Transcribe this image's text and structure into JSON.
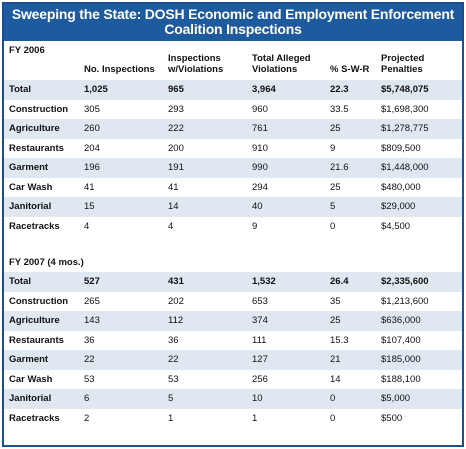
{
  "title_line1": "Sweeping the State: DOSH Economic and Employment Enforcement",
  "title_line2": "Coalition Inspections",
  "columns": {
    "inspections": "No. Inspections",
    "violations": "Inspections w/Violations",
    "alleged": "Total Alleged Violations",
    "swr": "% S-W-R",
    "penalties": "Projected Penalties"
  },
  "fy2006": {
    "label": "FY 2006",
    "rows": [
      {
        "name": "Total",
        "inspections": "1,025",
        "violations": "965",
        "alleged": "3,964",
        "swr": "22.3",
        "penalties": "$5,748,075"
      },
      {
        "name": "Construction",
        "inspections": "305",
        "violations": "293",
        "alleged": "960",
        "swr": "33.5",
        "penalties": "$1,698,300"
      },
      {
        "name": "Agriculture",
        "inspections": "260",
        "violations": "222",
        "alleged": "761",
        "swr": "25",
        "penalties": "$1,278,775"
      },
      {
        "name": "Restaurants",
        "inspections": "204",
        "violations": "200",
        "alleged": "910",
        "swr": "9",
        "penalties": "$809,500"
      },
      {
        "name": "Garment",
        "inspections": "196",
        "violations": "191",
        "alleged": "990",
        "swr": "21.6",
        "penalties": "$1,448,000"
      },
      {
        "name": "Car Wash",
        "inspections": "41",
        "violations": "41",
        "alleged": "294",
        "swr": "25",
        "penalties": "$480,000"
      },
      {
        "name": "Janitorial",
        "inspections": "15",
        "violations": "14",
        "alleged": "40",
        "swr": "5",
        "penalties": "$29,000"
      },
      {
        "name": "Racetracks",
        "inspections": "4",
        "violations": "4",
        "alleged": "9",
        "swr": "0",
        "penalties": "$4,500"
      }
    ]
  },
  "fy2007": {
    "label": "FY 2007 (4 mos.)",
    "rows": [
      {
        "name": "Total",
        "inspections": "527",
        "violations": "431",
        "alleged": "1,532",
        "swr": "26.4",
        "penalties": "$2,335,600"
      },
      {
        "name": "Construction",
        "inspections": "265",
        "violations": "202",
        "alleged": "653",
        "swr": "35",
        "penalties": "$1,213,600"
      },
      {
        "name": "Agriculture",
        "inspections": "143",
        "violations": "112",
        "alleged": "374",
        "swr": "25",
        "penalties": "$636,000"
      },
      {
        "name": "Restaurants",
        "inspections": "36",
        "violations": "36",
        "alleged": "111",
        "swr": "15.3",
        "penalties": "$107,400"
      },
      {
        "name": "Garment",
        "inspections": "22",
        "violations": "22",
        "alleged": "127",
        "swr": "21",
        "penalties": "$185,000"
      },
      {
        "name": "Car Wash",
        "inspections": "53",
        "violations": "53",
        "alleged": "256",
        "swr": "14",
        "penalties": "$188,100"
      },
      {
        "name": "Janitorial",
        "inspections": "6",
        "violations": "5",
        "alleged": "10",
        "swr": "0",
        "penalties": "$5,000"
      },
      {
        "name": "Racetracks",
        "inspections": "2",
        "violations": "1",
        "alleged": "1",
        "swr": "0",
        "penalties": "$500"
      }
    ]
  },
  "colors": {
    "title_bg": "#1d5a9e",
    "stripe": "#dfe7f1",
    "border": "#1b4f8e"
  }
}
